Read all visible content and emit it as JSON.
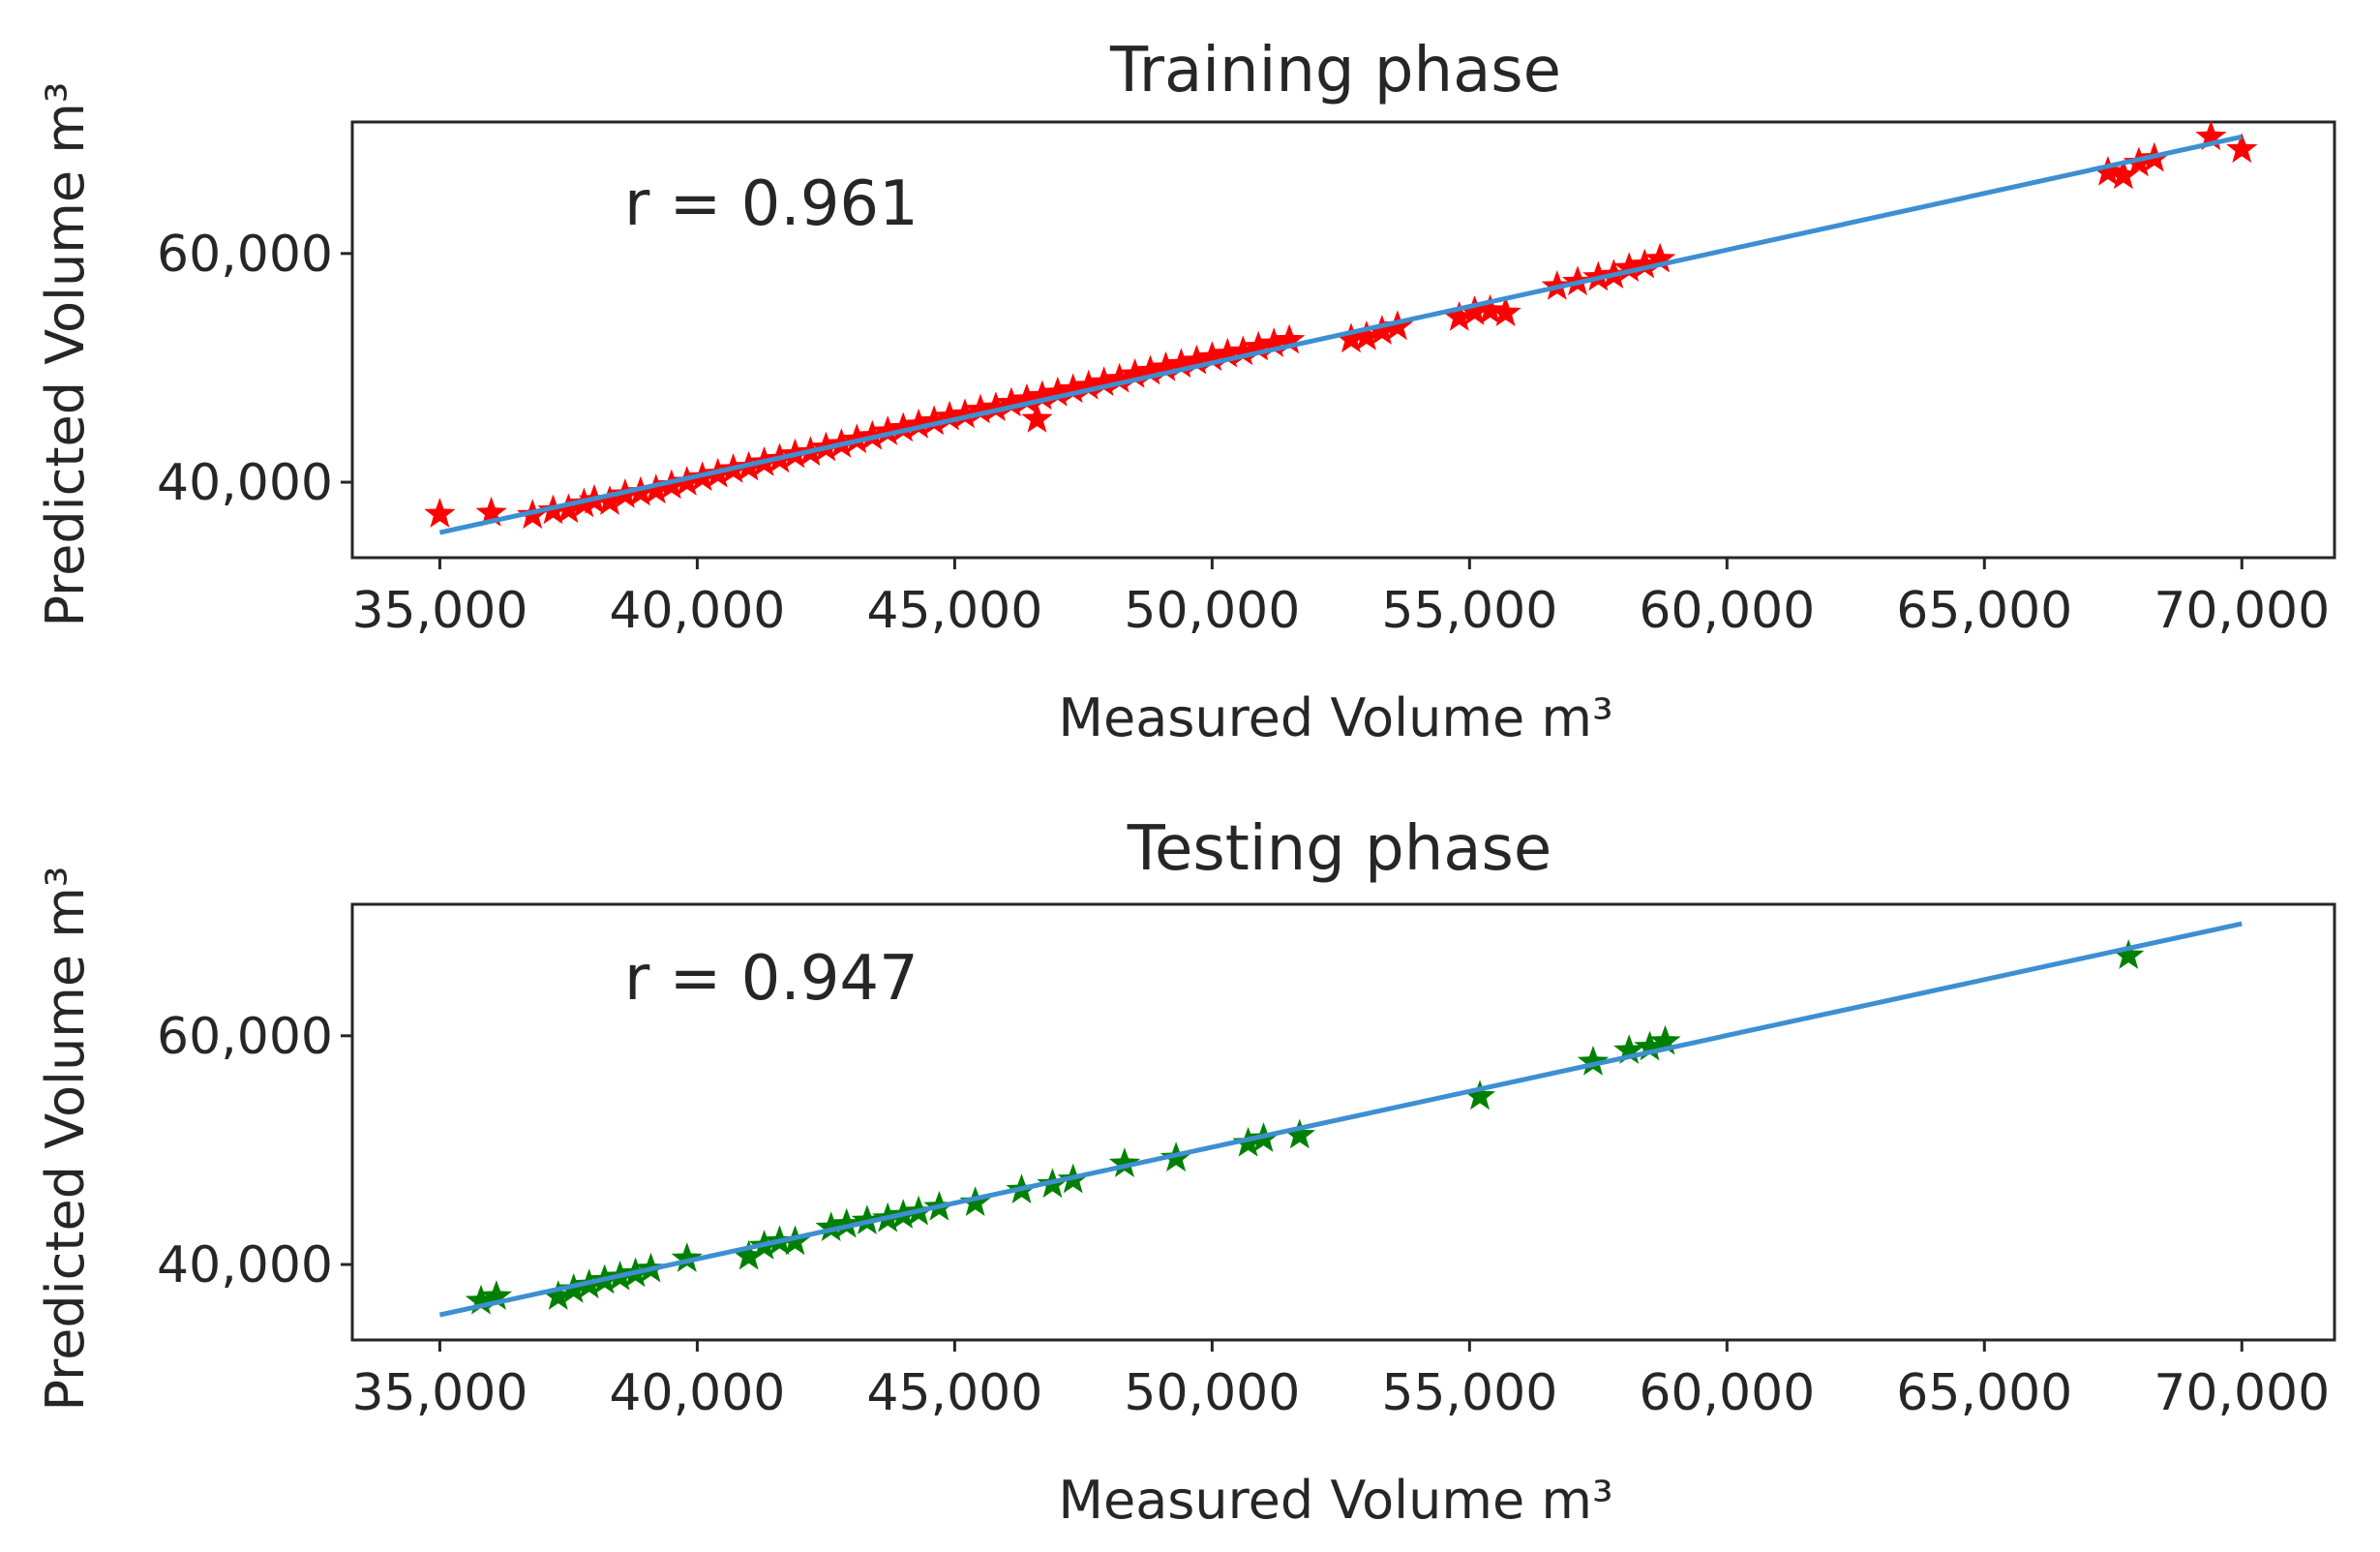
{
  "chart_data": [
    {
      "type": "scatter",
      "title": "Training phase",
      "xlabel": "Measured Volume m³",
      "ylabel": "Predicted Volume m³",
      "annotation": "r = 0.961",
      "xlim": [
        33300,
        71800
      ],
      "ylim": [
        33400,
        71500
      ],
      "xticks": [
        35000,
        40000,
        45000,
        50000,
        55000,
        60000,
        65000,
        70000
      ],
      "xtick_labels": [
        "35,000",
        "40,000",
        "45,000",
        "50,000",
        "55,000",
        "60,000",
        "65,000",
        "70,000"
      ],
      "yticks": [
        40000,
        60000
      ],
      "ytick_labels": [
        "40,000",
        "60,000"
      ],
      "marker_color": "#ff0000",
      "line_color": "#3d8fd1",
      "fit_line": {
        "x": [
          35000,
          70000
        ],
        "y": [
          35600,
          70200
        ]
      },
      "points": {
        "x": [
          35000,
          36000,
          36800,
          37200,
          37500,
          37800,
          38000,
          38300,
          38600,
          38900,
          39200,
          39500,
          39800,
          40100,
          40400,
          40700,
          41000,
          41300,
          41600,
          41900,
          42200,
          42500,
          42800,
          43100,
          43400,
          43700,
          44000,
          44300,
          44600,
          44900,
          45200,
          45500,
          45800,
          46100,
          46400,
          46700,
          46600,
          47000,
          47300,
          47600,
          47900,
          48200,
          48500,
          48800,
          49100,
          49400,
          49700,
          50000,
          50300,
          50600,
          50900,
          51200,
          51500,
          52700,
          53000,
          53300,
          53600,
          54800,
          55100,
          55400,
          55700,
          56700,
          57100,
          57500,
          57800,
          58100,
          58400,
          58700,
          67400,
          67700,
          68000,
          68300,
          69400,
          70000
        ],
        "y": [
          37200,
          37300,
          37100,
          37500,
          37600,
          38100,
          38400,
          38300,
          38900,
          39100,
          39300,
          39700,
          40000,
          40400,
          40700,
          41100,
          41300,
          41700,
          42000,
          42400,
          42600,
          43000,
          43300,
          43700,
          44000,
          44400,
          44700,
          45000,
          45300,
          45700,
          45900,
          46300,
          46500,
          46900,
          47200,
          47500,
          45500,
          47800,
          48100,
          48400,
          48700,
          49000,
          49400,
          49700,
          50000,
          50300,
          50600,
          50900,
          51200,
          51400,
          51800,
          52100,
          52400,
          52500,
          52700,
          53200,
          53600,
          54400,
          54900,
          55000,
          54800,
          57100,
          57500,
          57900,
          58100,
          58700,
          59000,
          59500,
          67100,
          66800,
          67900,
          68300,
          70200,
          69100
        ]
      }
    },
    {
      "type": "scatter",
      "title": "Testing phase",
      "xlabel": "Measured Volume m³",
      "ylabel": "Predicted Volume m³",
      "annotation": "r = 0.947",
      "xlim": [
        33300,
        71800
      ],
      "ylim": [
        33400,
        71500
      ],
      "xticks": [
        35000,
        40000,
        45000,
        50000,
        55000,
        60000,
        65000,
        70000
      ],
      "xtick_labels": [
        "35,000",
        "40,000",
        "45,000",
        "50,000",
        "55,000",
        "60,000",
        "65,000",
        "70,000"
      ],
      "yticks": [
        40000,
        60000
      ],
      "ytick_labels": [
        "40,000",
        "60,000"
      ],
      "marker_color": "#008000",
      "line_color": "#3d8fd1",
      "fit_line": {
        "x": [
          35000,
          70000
        ],
        "y": [
          35600,
          69800
        ]
      },
      "points": {
        "x": [
          35800,
          36100,
          37300,
          37600,
          37900,
          38200,
          38500,
          38800,
          39100,
          39800,
          41000,
          41300,
          41600,
          41900,
          42600,
          42900,
          43300,
          43700,
          44000,
          44300,
          44700,
          45400,
          46300,
          46900,
          47300,
          48300,
          49300,
          50700,
          51000,
          51700,
          55200,
          57400,
          58100,
          58500,
          58800,
          67800
        ],
        "y": [
          36800,
          37200,
          37200,
          37800,
          38200,
          38600,
          38900,
          39200,
          39600,
          40500,
          40700,
          41600,
          42000,
          42000,
          43200,
          43500,
          43800,
          44000,
          44300,
          44600,
          45000,
          45400,
          46500,
          47000,
          47400,
          48800,
          49300,
          50600,
          51000,
          51300,
          54700,
          57700,
          58700,
          59000,
          59500,
          67000
        ]
      }
    }
  ]
}
